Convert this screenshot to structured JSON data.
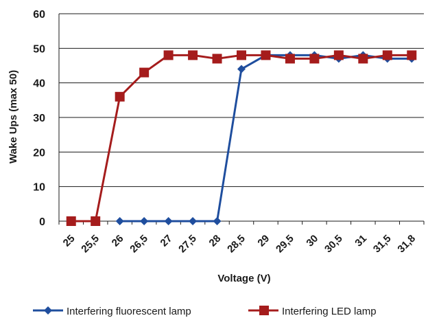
{
  "chart_data": {
    "type": "line",
    "title": "",
    "xlabel": "Voltage (V)",
    "ylabel": "Wake Ups (max 50)",
    "ylim": [
      0,
      60
    ],
    "yticks": [
      "0",
      "10",
      "20",
      "30",
      "40",
      "50",
      "60"
    ],
    "categories": [
      "25",
      "25,5",
      "26",
      "26,5",
      "27",
      "27,5",
      "28",
      "28,5",
      "29",
      "29,5",
      "30",
      "30,5",
      "31",
      "31,5",
      "31,8"
    ],
    "grid": "horizontal",
    "legend_position": "bottom",
    "series": [
      {
        "name": "Interfering fluorescent lamp",
        "color": "#1f4e9e",
        "marker": "diamond",
        "values": [
          null,
          null,
          0,
          0,
          0,
          0,
          0,
          44,
          48,
          48,
          48,
          47,
          48,
          47,
          47
        ]
      },
      {
        "name": "Interfering LED lamp",
        "color": "#a51c1c",
        "marker": "square",
        "values": [
          0,
          0,
          36,
          43,
          48,
          48,
          47,
          48,
          48,
          47,
          47,
          48,
          47,
          48,
          48
        ]
      }
    ]
  }
}
